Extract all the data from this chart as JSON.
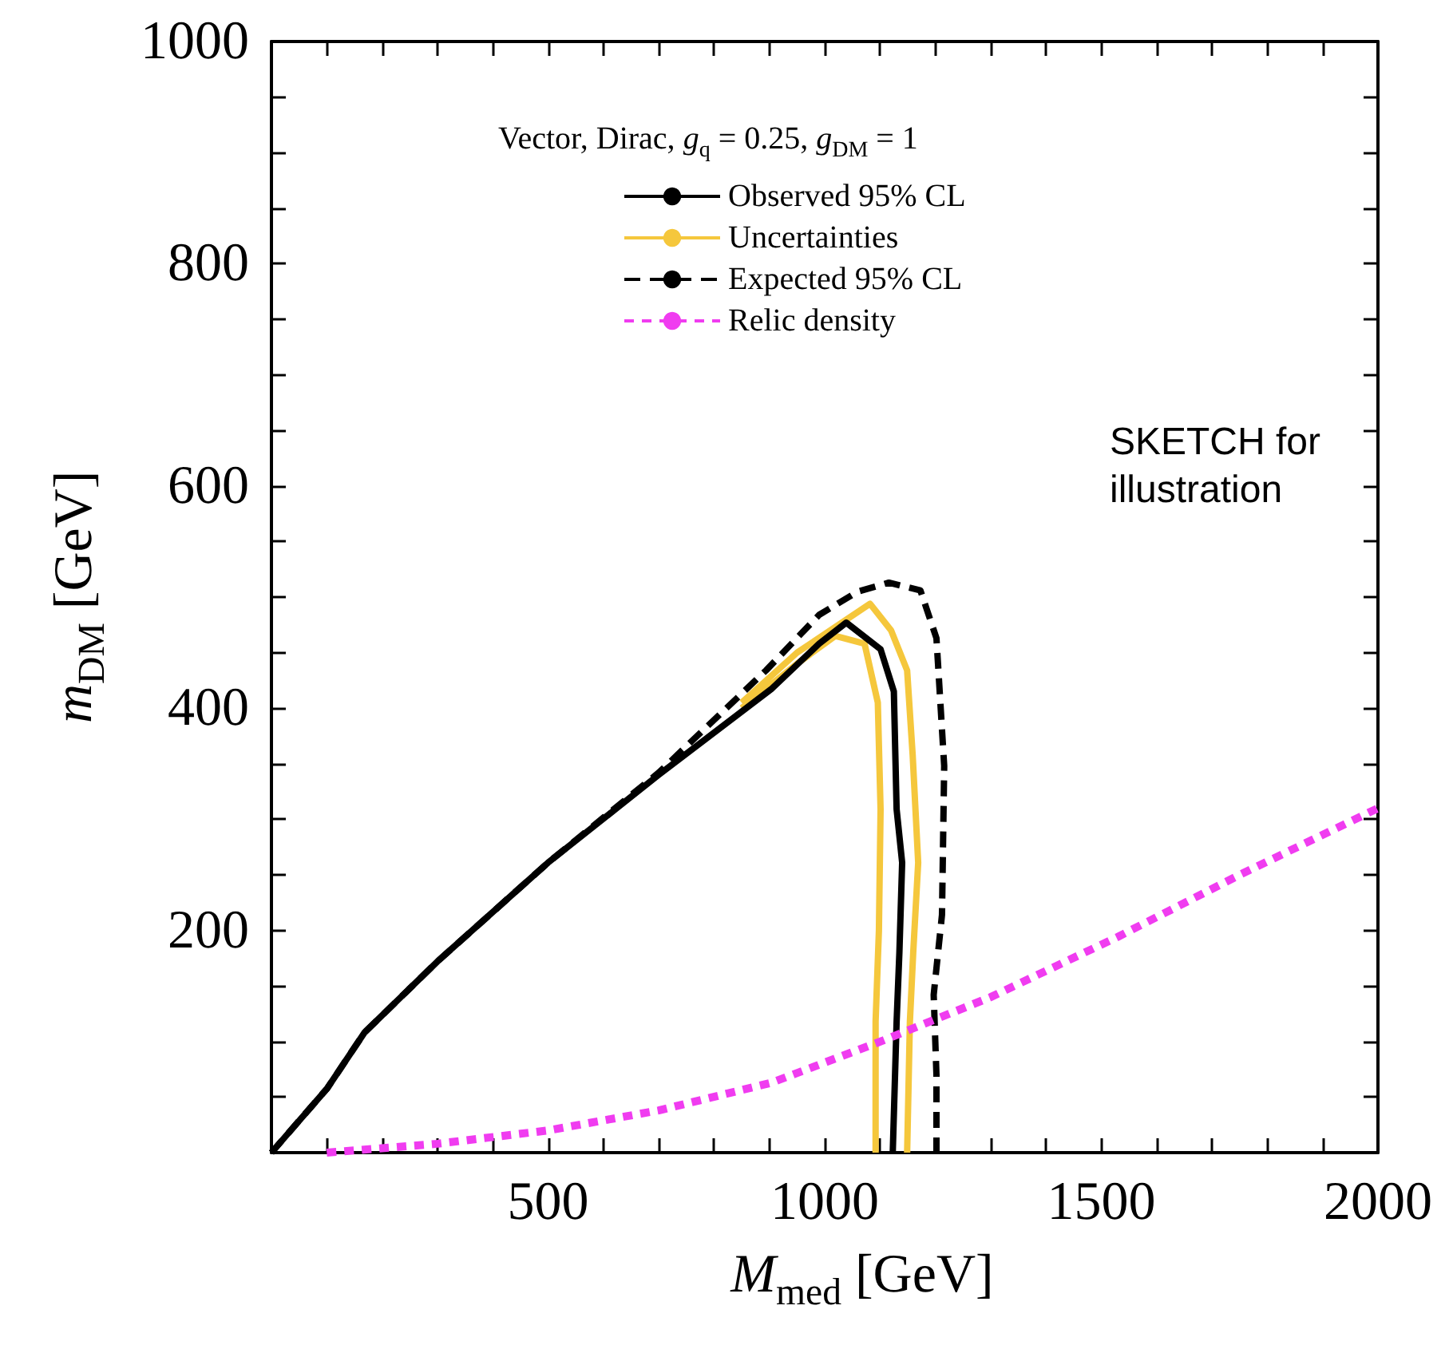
{
  "chart_data": {
    "type": "line",
    "legend_title": "Vector, Dirac, g$_{q}$ = 0.25, g$_{DM}$ = 1",
    "xlabel": "M$_{med}$  [GeV]",
    "ylabel": "m$_{DM}$  [GeV]",
    "annotations": [
      "SKETCH for\nillustration"
    ],
    "xlim": [
      0,
      2000
    ],
    "ylim": [
      0,
      1000
    ],
    "xticks": [
      {
        "value": 100,
        "label": null
      },
      {
        "value": 200,
        "label": null
      },
      {
        "value": 300,
        "label": null
      },
      {
        "value": 400,
        "label": null
      },
      500,
      {
        "value": 600,
        "label": null
      },
      {
        "value": 700,
        "label": null
      },
      {
        "value": 800,
        "label": null
      },
      {
        "value": 900,
        "label": null
      },
      1000,
      {
        "value": 1100,
        "label": null
      },
      {
        "value": 1200,
        "label": null
      },
      {
        "value": 1300,
        "label": null
      },
      {
        "value": 1400,
        "label": null
      },
      1500,
      {
        "value": 1600,
        "label": null
      },
      {
        "value": 1700,
        "label": null
      },
      {
        "value": 1800,
        "label": null
      },
      {
        "value": 1900,
        "label": null
      },
      2000
    ],
    "yticks": [
      {
        "value": 50,
        "label": null
      },
      {
        "value": 100,
        "label": null
      },
      {
        "value": 150,
        "label": null
      },
      200,
      {
        "value": 250,
        "label": null
      },
      {
        "value": 300,
        "label": null
      },
      {
        "value": 350,
        "label": null
      },
      400,
      {
        "value": 450,
        "label": null
      },
      {
        "value": 500,
        "label": null
      },
      {
        "value": 550,
        "label": null
      },
      600,
      {
        "value": 650,
        "label": null
      },
      {
        "value": 700,
        "label": null
      },
      {
        "value": 750,
        "label": null
      },
      800,
      {
        "value": 850,
        "label": null
      },
      {
        "value": 900,
        "label": null
      },
      {
        "value": 950,
        "label": null
      },
      1000
    ],
    "grid": false,
    "legend": "top right",
    "marker": "none",
    "series": [
      {
        "name": "Uncertainties",
        "color": "#f5c73c",
        "line_style": "solid",
        "x": [
          850,
          950,
          1019,
          1072,
          1096,
          1101,
          1098,
          1092,
          1092,
          null,
          850,
          950,
          1040,
          1082,
          1120,
          1149,
          1159,
          1169,
          1160,
          1154,
          1149
        ],
        "values": [
          400,
          440,
          465,
          458,
          405,
          309,
          200,
          118,
          0,
          null,
          405,
          450,
          480,
          494,
          470,
          434,
          358,
          261,
          180,
          118,
          0
        ]
      },
      {
        "name": "Observed 95% CL",
        "color": "#000000",
        "line_style": "solid",
        "x": [
          0,
          101,
          168,
          300,
          500,
          700,
          903,
          990,
          1039,
          1101,
          1125,
          1130,
          1140,
          1135,
          1130,
          1123
        ],
        "values": [
          0,
          58,
          108,
          172,
          261,
          340,
          417,
          458,
          477,
          453,
          415,
          309,
          261,
          180,
          118,
          0
        ]
      },
      {
        "name": "Expected 95% CL",
        "color": "#000000",
        "line_style": "dashed",
        "x": [
          0,
          101,
          168,
          300,
          500,
          700,
          894,
          990,
          1060,
          1116,
          1173,
          1202,
          1216,
          1212,
          1197,
          1202,
          1202
        ],
        "values": [
          0,
          58,
          108,
          172,
          261,
          342,
          434,
          484,
          505,
          513,
          506,
          463,
          348,
          214,
          142,
          70,
          0
        ]
      },
      {
        "name": "Relic density",
        "color": "#f03cf0",
        "line_style": "dotted",
        "x": [
          100,
          300,
          500,
          700,
          904,
          1106,
          1300,
          1529,
          1750,
          2000
        ],
        "values": [
          0,
          8,
          20,
          38,
          63,
          101,
          140,
          194,
          250,
          310
        ]
      }
    ]
  }
}
